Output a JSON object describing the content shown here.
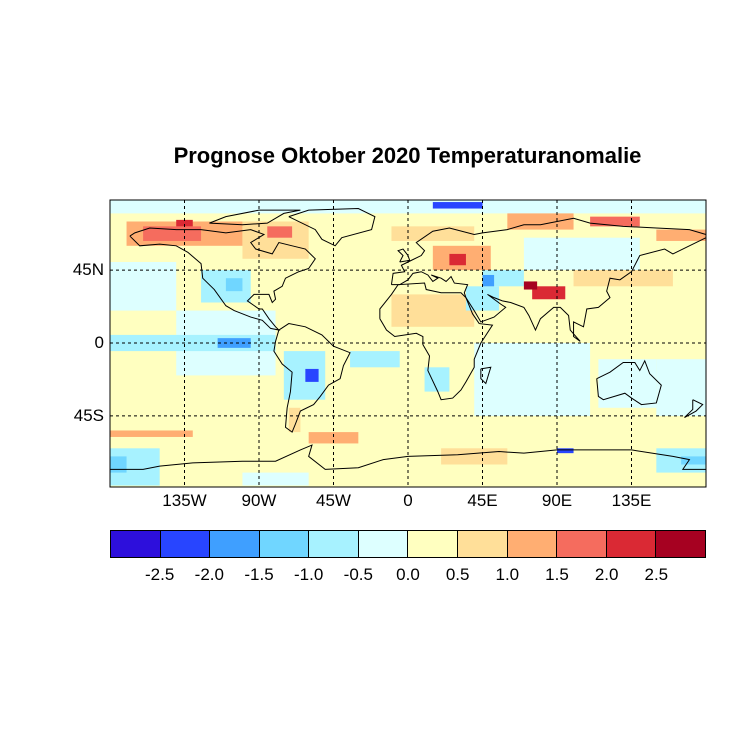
{
  "title": "Prognose Oktober 2020 Temperaturanomalie",
  "axes": {
    "lat_labels": [
      {
        "lat": 45,
        "text": "45N"
      },
      {
        "lat": 0,
        "text": "0"
      },
      {
        "lat": -45,
        "text": "45S"
      }
    ],
    "lon_labels": [
      {
        "lon": -135,
        "text": "135W"
      },
      {
        "lon": -90,
        "text": "90W"
      },
      {
        "lon": -45,
        "text": "45W"
      },
      {
        "lon": 0,
        "text": "0"
      },
      {
        "lon": 45,
        "text": "45E"
      },
      {
        "lon": 90,
        "text": "90E"
      },
      {
        "lon": 135,
        "text": "135E"
      }
    ],
    "grid": "dashed"
  },
  "legend": {
    "colors": [
      "#2d0fdc",
      "#2845ff",
      "#3f9fff",
      "#70d6ff",
      "#a7f2ff",
      "#ddffff",
      "#ffffc0",
      "#ffdf99",
      "#ffae72",
      "#f56c5e",
      "#da2934",
      "#a60121"
    ],
    "breaks": [
      -3.0,
      -2.5,
      -2.0,
      -1.5,
      -1.0,
      -0.5,
      0.0,
      0.5,
      1.0,
      1.5,
      2.0,
      2.5,
      3.0
    ],
    "labels": [
      "-2.5",
      "-2.0",
      "-1.5",
      "-1.0",
      "-0.5",
      "0.0",
      "0.5",
      "1.0",
      "1.5",
      "2.0",
      "2.5"
    ]
  },
  "anomaly_field": {
    "background": 0.25,
    "regions": [
      {
        "lon": [
          -180,
          180
        ],
        "lat": [
          80,
          90
        ],
        "value": -0.3
      },
      {
        "lon": [
          15,
          45
        ],
        "lat": [
          83,
          87
        ],
        "value": -2.2
      },
      {
        "lon": [
          -170,
          -100
        ],
        "lat": [
          60,
          75
        ],
        "value": 1.2
      },
      {
        "lon": [
          -160,
          -125
        ],
        "lat": [
          63,
          72
        ],
        "value": 1.7
      },
      {
        "lon": [
          -140,
          -130
        ],
        "lat": [
          72,
          76
        ],
        "value": 2.2
      },
      {
        "lon": [
          -100,
          -60
        ],
        "lat": [
          52,
          75
        ],
        "value": 0.8
      },
      {
        "lon": [
          -85,
          -70
        ],
        "lat": [
          65,
          72
        ],
        "value": 1.7
      },
      {
        "lon": [
          -180,
          -140
        ],
        "lat": [
          20,
          50
        ],
        "value": -0.3
      },
      {
        "lon": [
          -125,
          -95
        ],
        "lat": [
          25,
          45
        ],
        "value": -0.7
      },
      {
        "lon": [
          -110,
          -100
        ],
        "lat": [
          32,
          40
        ],
        "value": -1.2
      },
      {
        "lon": [
          -140,
          -80
        ],
        "lat": [
          -20,
          20
        ],
        "value": -0.3
      },
      {
        "lon": [
          -180,
          -80
        ],
        "lat": [
          -5,
          5
        ],
        "value": -0.9
      },
      {
        "lon": [
          -115,
          -95
        ],
        "lat": [
          -3,
          3
        ],
        "value": -1.6
      },
      {
        "lon": [
          -75,
          -50
        ],
        "lat": [
          -35,
          -5
        ],
        "value": -0.9
      },
      {
        "lon": [
          -62,
          -54
        ],
        "lat": [
          -24,
          -16
        ],
        "value": -2.2
      },
      {
        "lon": [
          -72,
          -65
        ],
        "lat": [
          -55,
          -40
        ],
        "value": 0.8
      },
      {
        "lon": [
          -35,
          -5
        ],
        "lat": [
          -15,
          -5
        ],
        "value": -0.7
      },
      {
        "lon": [
          -10,
          40
        ],
        "lat": [
          10,
          30
        ],
        "value": 0.7
      },
      {
        "lon": [
          10,
          25
        ],
        "lat": [
          -30,
          -15
        ],
        "value": -0.7
      },
      {
        "lon": [
          -10,
          40
        ],
        "lat": [
          63,
          72
        ],
        "value": 0.7
      },
      {
        "lon": [
          15,
          50
        ],
        "lat": [
          45,
          60
        ],
        "value": 1.3
      },
      {
        "lon": [
          25,
          35
        ],
        "lat": [
          48,
          55
        ],
        "value": 2.0
      },
      {
        "lon": [
          60,
          100
        ],
        "lat": [
          70,
          80
        ],
        "value": 1.3
      },
      {
        "lon": [
          110,
          140
        ],
        "lat": [
          72,
          78
        ],
        "value": 1.9
      },
      {
        "lon": [
          150,
          180
        ],
        "lat": [
          63,
          70
        ],
        "value": 1.2
      },
      {
        "lon": [
          70,
          140
        ],
        "lat": [
          45,
          65
        ],
        "value": -0.3
      },
      {
        "lon": [
          45,
          70
        ],
        "lat": [
          35,
          45
        ],
        "value": -0.8
      },
      {
        "lon": [
          35,
          55
        ],
        "lat": [
          20,
          35
        ],
        "value": -0.8
      },
      {
        "lon": [
          45,
          52
        ],
        "lat": [
          35,
          42
        ],
        "value": -1.6
      },
      {
        "lon": [
          75,
          95
        ],
        "lat": [
          27,
          35
        ],
        "value": 2.0
      },
      {
        "lon": [
          70,
          78
        ],
        "lat": [
          33,
          38
        ],
        "value": 2.6
      },
      {
        "lon": [
          100,
          160
        ],
        "lat": [
          35,
          45
        ],
        "value": 0.7
      },
      {
        "lon": [
          40,
          110
        ],
        "lat": [
          -45,
          0
        ],
        "value": -0.3
      },
      {
        "lon": [
          115,
          150
        ],
        "lat": [
          -40,
          -10
        ],
        "value": -0.3
      },
      {
        "lon": [
          150,
          180
        ],
        "lat": [
          -45,
          -10
        ],
        "value": -0.3
      },
      {
        "lon": [
          -180,
          -130
        ],
        "lat": [
          -58,
          -54
        ],
        "value": 1.4
      },
      {
        "lon": [
          -60,
          -30
        ],
        "lat": [
          -62,
          -55
        ],
        "value": 1.0
      },
      {
        "lon": [
          -180,
          -150
        ],
        "lat": [
          -88,
          -65
        ],
        "value": -0.7
      },
      {
        "lon": [
          -180,
          -170
        ],
        "lat": [
          -80,
          -70
        ],
        "value": -1.3
      },
      {
        "lon": [
          150,
          180
        ],
        "lat": [
          -80,
          -65
        ],
        "value": -0.8
      },
      {
        "lon": [
          165,
          180
        ],
        "lat": [
          -75,
          -70
        ],
        "value": -1.3
      },
      {
        "lon": [
          90,
          100
        ],
        "lat": [
          -68,
          -65
        ],
        "value": -2.2
      },
      {
        "lon": [
          20,
          60
        ],
        "lat": [
          -75,
          -65
        ],
        "value": 0.6
      },
      {
        "lon": [
          -100,
          -60
        ],
        "lat": [
          -88,
          -80
        ],
        "value": -0.3
      }
    ]
  }
}
